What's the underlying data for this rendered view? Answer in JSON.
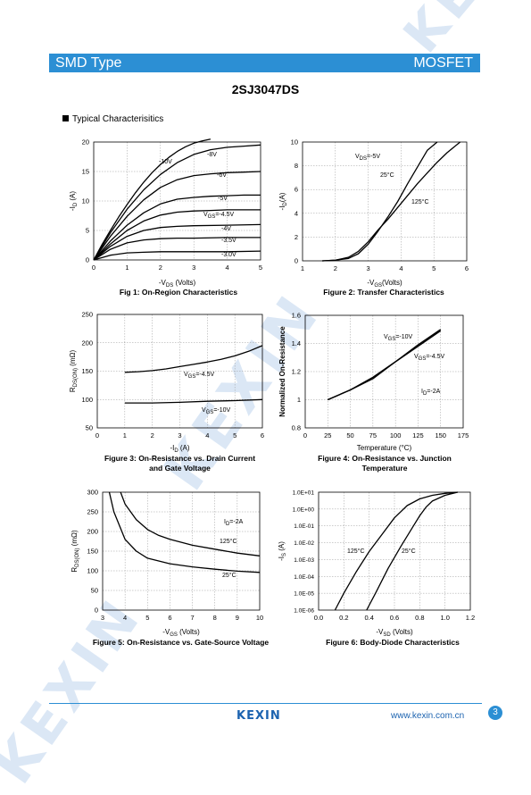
{
  "header": {
    "left": "SMD Type",
    "right": "MOSFET"
  },
  "part_number": "2SJ3047DS",
  "section_title": "Typical  Characterisitics",
  "footer": {
    "logo": "KEXIN",
    "url": "www.kexin.com.cn",
    "page": "3"
  },
  "watermark": "KEXIN",
  "colors": {
    "banner": "#2c8fd4",
    "logo": "#1c63b0",
    "watermark": "#dbe7f5"
  },
  "chart_data": [
    {
      "type": "line",
      "title": "Fig 1: On-Region Characteristics",
      "xlabel": "-VDS (Volts)",
      "ylabel": "-ID (A)",
      "xlim": [
        0,
        5
      ],
      "ylim": [
        0,
        20
      ],
      "xticks": [
        "0",
        "1",
        "2",
        "3",
        "4",
        "5"
      ],
      "yticks": [
        "0",
        "5",
        "10",
        "15",
        "20"
      ],
      "grid": true,
      "series": [
        {
          "name": "-10V",
          "x": [
            0,
            0.25,
            0.5,
            0.75,
            1,
            1.25,
            1.5,
            1.75,
            2,
            2.25,
            2.5,
            2.75,
            3,
            3.25,
            3.5
          ],
          "y": [
            0,
            2.6,
            5,
            7.3,
            9.4,
            11.4,
            13.2,
            14.8,
            16.2,
            17.4,
            18.4,
            19.2,
            19.8,
            20.2,
            20.5
          ]
        },
        {
          "name": "-8V",
          "x": [
            0,
            0.5,
            1,
            1.5,
            2,
            2.5,
            3,
            3.5,
            4,
            4.5,
            5
          ],
          "y": [
            0,
            4.6,
            8.6,
            11.9,
            14.5,
            16.5,
            17.9,
            18.7,
            19.1,
            19.3,
            19.5
          ]
        },
        {
          "name": "-6V",
          "x": [
            0,
            0.5,
            1,
            1.5,
            2,
            2.5,
            3,
            3.5,
            4,
            4.5,
            5
          ],
          "y": [
            0,
            4,
            7.4,
            10.2,
            12.3,
            13.6,
            14.3,
            14.6,
            14.8,
            14.9,
            15
          ]
        },
        {
          "name": "-5V",
          "x": [
            0,
            0.5,
            1,
            1.5,
            2,
            2.5,
            3,
            3.5,
            4,
            4.5,
            5
          ],
          "y": [
            0,
            3.2,
            5.9,
            8,
            9.5,
            10.3,
            10.6,
            10.8,
            10.9,
            11,
            11
          ]
        },
        {
          "name": "VGS=-4.5V",
          "x": [
            0,
            0.5,
            1,
            1.5,
            2,
            2.5,
            3,
            3.5,
            4,
            4.5,
            5
          ],
          "y": [
            0,
            2.7,
            5,
            6.6,
            7.6,
            8.1,
            8.3,
            8.4,
            8.5,
            8.5,
            8.5
          ]
        },
        {
          "name": "-4V",
          "x": [
            0,
            0.5,
            1,
            1.5,
            2,
            2.5,
            3,
            4,
            5
          ],
          "y": [
            0,
            2.3,
            4,
            5,
            5.5,
            5.7,
            5.8,
            5.9,
            6
          ]
        },
        {
          "name": "-3.5V",
          "x": [
            0,
            0.5,
            1,
            1.5,
            2,
            2.5,
            3,
            4,
            5
          ],
          "y": [
            0,
            1.8,
            2.9,
            3.4,
            3.6,
            3.7,
            3.7,
            3.8,
            3.8
          ]
        },
        {
          "name": "-3.0V",
          "x": [
            0,
            0.5,
            1,
            1.5,
            2,
            3,
            4,
            5
          ],
          "y": [
            0,
            0.8,
            1.2,
            1.3,
            1.4,
            1.4,
            1.4,
            1.5
          ]
        }
      ]
    },
    {
      "type": "line",
      "title": "Figure 2: Transfer Characteristics",
      "xlabel": "-VGS(Volts)",
      "ylabel": "-ID(A)",
      "xlim": [
        1,
        6
      ],
      "ylim": [
        0,
        10
      ],
      "xticks": [
        "1",
        "2",
        "3",
        "4",
        "5",
        "6"
      ],
      "yticks": [
        "0",
        "2",
        "4",
        "6",
        "8",
        "10"
      ],
      "grid": true,
      "annotations": [
        "VDS=-5V"
      ],
      "series": [
        {
          "name": "25°C",
          "x": [
            1.6,
            2,
            2.4,
            2.7,
            3,
            3.3,
            3.6,
            3.9,
            4.2,
            4.5,
            4.8,
            5.1
          ],
          "y": [
            0,
            0.05,
            0.2,
            0.6,
            1.4,
            2.5,
            3.7,
            5,
            6.5,
            7.9,
            9.3,
            10
          ]
        },
        {
          "name": "125°C",
          "x": [
            1.6,
            2,
            2.4,
            2.7,
            3,
            3.3,
            3.6,
            3.9,
            4.2,
            4.5,
            4.8,
            5.1,
            5.4,
            5.8
          ],
          "y": [
            0,
            0.05,
            0.3,
            0.8,
            1.6,
            2.6,
            3.5,
            4.5,
            5.5,
            6.5,
            7.4,
            8.3,
            9.1,
            10
          ]
        }
      ]
    },
    {
      "type": "line",
      "title": "Figure 3: On-Resistance vs. Drain Current and Gate Voltage",
      "xlabel": "-ID (A)",
      "ylabel": "RDS(ON) (mΩ)",
      "xlim": [
        0,
        6
      ],
      "ylim": [
        50,
        250
      ],
      "xticks": [
        "0",
        "1",
        "2",
        "3",
        "4",
        "5",
        "6"
      ],
      "yticks": [
        "50",
        "100",
        "150",
        "200",
        "250"
      ],
      "grid": true,
      "series": [
        {
          "name": "VGS=-4.5V",
          "x": [
            1,
            1.5,
            2,
            2.5,
            3,
            3.5,
            4,
            4.5,
            5,
            5.5,
            6
          ],
          "y": [
            148,
            149,
            151,
            154,
            158,
            162,
            166,
            171,
            177,
            185,
            195
          ]
        },
        {
          "name": "VGS=-10V",
          "x": [
            1,
            1.5,
            2,
            3,
            4,
            5,
            6
          ],
          "y": [
            94,
            94,
            94,
            95,
            97,
            98,
            100
          ]
        }
      ]
    },
    {
      "type": "line",
      "title": "Figure 4: On-Resistance vs. Junction Temperature",
      "xlabel": "Temperature (°C)",
      "ylabel": "Normalized On-Resistance",
      "xlim": [
        0,
        175
      ],
      "ylim": [
        0.8,
        1.6
      ],
      "xticks": [
        "0",
        "25",
        "50",
        "75",
        "100",
        "125",
        "150",
        "175"
      ],
      "yticks": [
        "0.8",
        "1",
        "1.2",
        "1.4",
        "1.6"
      ],
      "grid": true,
      "annotations": [
        "ID=-2A"
      ],
      "series": [
        {
          "name": "VGS=-10V",
          "x": [
            25,
            50,
            75,
            100,
            125,
            150
          ],
          "y": [
            1,
            1.07,
            1.16,
            1.27,
            1.39,
            1.5
          ]
        },
        {
          "name": "VGS=-4.5V",
          "x": [
            25,
            50,
            75,
            100,
            125,
            150
          ],
          "y": [
            1,
            1.07,
            1.15,
            1.27,
            1.38,
            1.49
          ]
        }
      ]
    },
    {
      "type": "line",
      "title": "Figure 5: On-Resistance vs. Gate-Source Voltage",
      "xlabel": "-VGS (Volts)",
      "ylabel": "RDS(ON) (mΩ)",
      "xlim": [
        3,
        10
      ],
      "ylim": [
        0,
        300
      ],
      "xticks": [
        "3",
        "4",
        "5",
        "6",
        "7",
        "8",
        "9",
        "10"
      ],
      "yticks": [
        "0",
        "50",
        "100",
        "150",
        "200",
        "250",
        "300"
      ],
      "grid": true,
      "annotations": [
        "ID=-2A"
      ],
      "series": [
        {
          "name": "125°C",
          "x": [
            3.8,
            4,
            4.5,
            5,
            5.5,
            6,
            7,
            8,
            9,
            10
          ],
          "y": [
            300,
            270,
            230,
            205,
            190,
            180,
            165,
            155,
            145,
            138
          ]
        },
        {
          "name": "25°C",
          "x": [
            3.3,
            3.5,
            4,
            4.5,
            5,
            6,
            7,
            8,
            9,
            10
          ],
          "y": [
            300,
            250,
            180,
            150,
            132,
            118,
            110,
            104,
            99,
            96
          ]
        }
      ]
    },
    {
      "type": "line",
      "title": "Figure 6: Body-Diode Characteristics",
      "xlabel": "-VSD (Volts)",
      "ylabel": "-IS (A)",
      "xlim": [
        0,
        1.2
      ],
      "ylim": [
        "1.0E-06",
        "1.0E+01"
      ],
      "yscale": "log",
      "xticks": [
        "0.0",
        "0.2",
        "0.4",
        "0.6",
        "0.8",
        "1.0",
        "1.2"
      ],
      "yticks": [
        "1.0E-06",
        "1.0E-05",
        "1.0E-04",
        "1.0E-03",
        "1.0E-02",
        "1.0E-01",
        "1.0E+00",
        "1.0E+01"
      ],
      "grid": true,
      "series": [
        {
          "name": "125°C",
          "x": [
            0.13,
            0.2,
            0.3,
            0.4,
            0.5,
            0.6,
            0.7,
            0.8,
            0.9,
            1.0,
            1.1
          ],
          "y": [
            1e-06,
            1e-05,
            0.0002,
            0.003,
            0.03,
            0.3,
            1.6,
            4,
            6.5,
            8.5,
            10
          ]
        },
        {
          "name": "25°C",
          "x": [
            0.38,
            0.45,
            0.55,
            0.65,
            0.75,
            0.8,
            0.85,
            0.9,
            1.0,
            1.1
          ],
          "y": [
            1e-06,
            1e-05,
            0.0003,
            0.006,
            0.1,
            0.4,
            1.3,
            3,
            6.5,
            10
          ]
        }
      ]
    }
  ]
}
